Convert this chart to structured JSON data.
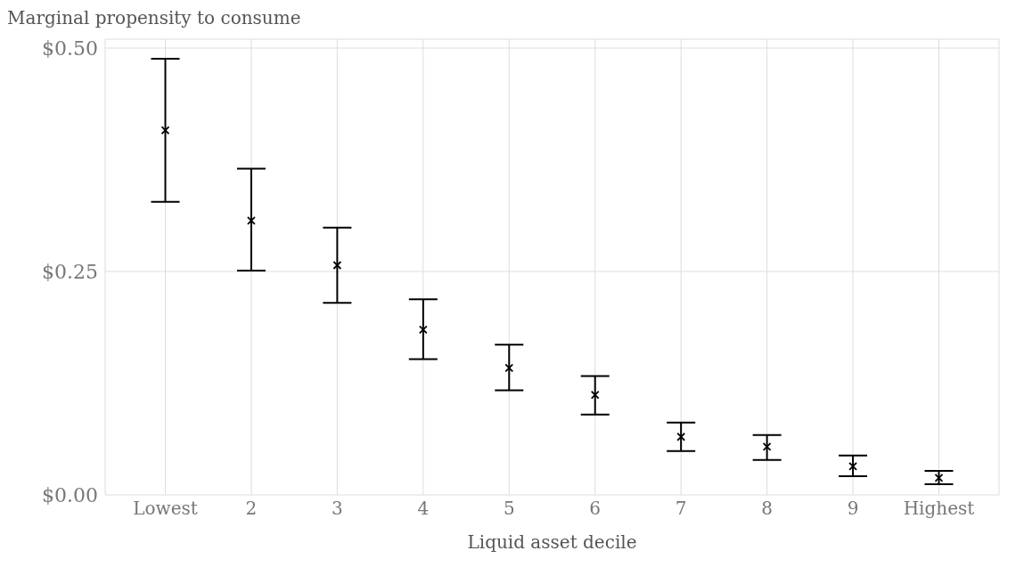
{
  "chart_data": {
    "type": "scatter",
    "ylabel": "Marginal propensity to consume",
    "xlabel": "Liquid asset decile",
    "categories": [
      "Lowest",
      "2",
      "3",
      "4",
      "5",
      "6",
      "7",
      "8",
      "9",
      "Highest"
    ],
    "values": [
      0.408,
      0.307,
      0.257,
      0.185,
      0.142,
      0.112,
      0.065,
      0.054,
      0.032,
      0.019
    ],
    "errors": [
      [
        0.328,
        0.488
      ],
      [
        0.251,
        0.365
      ],
      [
        0.215,
        0.299
      ],
      [
        0.152,
        0.219
      ],
      [
        0.117,
        0.168
      ],
      [
        0.09,
        0.133
      ],
      [
        0.049,
        0.081
      ],
      [
        0.039,
        0.067
      ],
      [
        0.021,
        0.044
      ],
      [
        0.012,
        0.027
      ]
    ],
    "color": "#000000",
    "marker": "cross",
    "ylim": [
      0,
      0.51
    ],
    "yticks": [
      {
        "value": 0,
        "label": "$0.00"
      },
      {
        "value": 0.25,
        "label": "$0.25"
      },
      {
        "value": 0.5,
        "label": "$0.50"
      }
    ],
    "grid": true,
    "legend": false
  }
}
